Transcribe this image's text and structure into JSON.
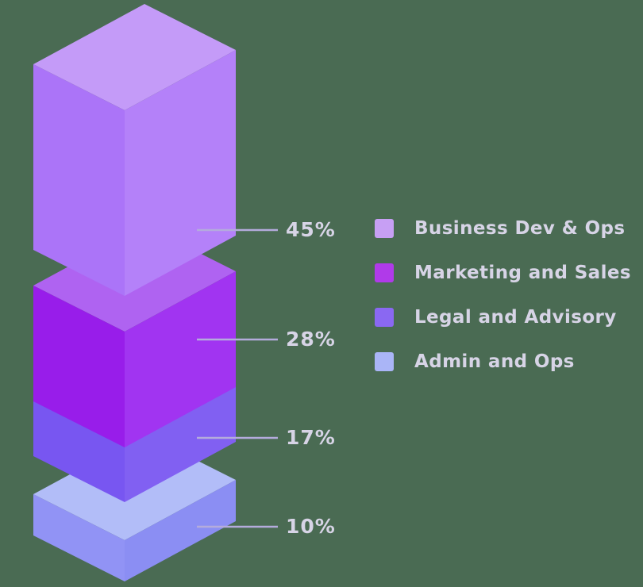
{
  "background_color": "#4a6b53",
  "text_color": "#d7d4e6",
  "leader_line_color": "#b4abdc",
  "chart_data": {
    "type": "bar",
    "variant": "isometric-3d-exploded-stacked-bar",
    "title": "",
    "unit": "%",
    "categories": [
      "Business Dev & Ops",
      "Marketing and Sales",
      "Legal and Advisory",
      "Admin and Ops"
    ],
    "values": [
      45,
      28,
      17,
      10
    ],
    "grid": false,
    "axes": "none",
    "legend_position": "right",
    "series": [
      {
        "name": "Business Dev & Ops",
        "value": 45,
        "label": "45%",
        "legend_color": "#c79ff4",
        "face_colors": {
          "top": "#c49bf8",
          "left": "#ab74f8",
          "right": "#b481f9"
        }
      },
      {
        "name": "Marketing and Sales",
        "value": 28,
        "label": "28%",
        "legend_color": "#b03ae9",
        "face_colors": {
          "top": "#af63f1",
          "left": "#981dea",
          "right": "#a134f1"
        }
      },
      {
        "name": "Legal and Advisory",
        "value": 17,
        "label": "17%",
        "legend_color": "#8a68f2",
        "face_colors": {
          "top": "#8a74f5",
          "left": "#7856f1",
          "right": "#8160f2"
        }
      },
      {
        "name": "Admin and Ops",
        "value": 10,
        "label": "10%",
        "legend_color": "#aab5f7",
        "face_colors": {
          "top": "#b2bdf8",
          "left": "#9193f5",
          "right": "#8b8ef3"
        }
      }
    ]
  }
}
